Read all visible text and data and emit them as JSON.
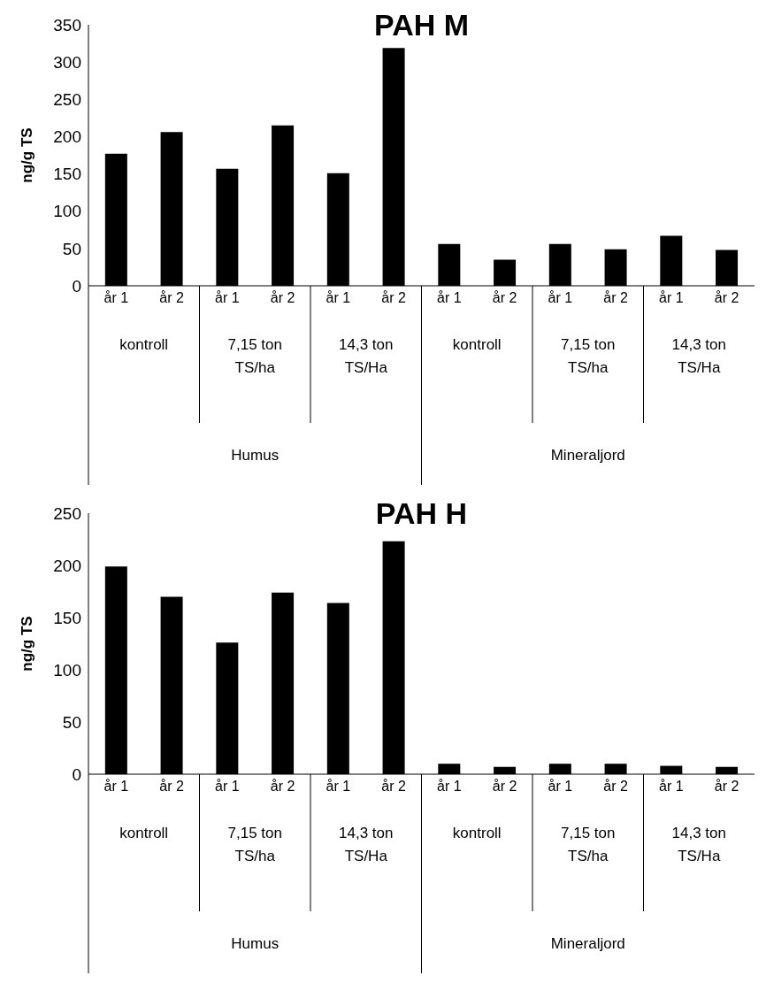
{
  "chart_data": [
    {
      "type": "bar",
      "title": "PAH M",
      "ylabel": "ng/g TS",
      "categories": [
        "år 1",
        "år 2",
        "år 1",
        "år 2",
        "år 1",
        "år 2",
        "år 1",
        "år 2",
        "år 1",
        "år 2",
        "år 1",
        "år 2"
      ],
      "values": [
        177,
        206,
        157,
        215,
        151,
        319,
        56,
        35,
        56,
        49,
        67,
        48
      ],
      "color": "#000000",
      "ylim": [
        0,
        350
      ],
      "yticks": [
        0,
        50,
        100,
        150,
        200,
        250,
        300,
        350
      ],
      "grid": false,
      "legend": false,
      "annotations": [
        "kontroll",
        "7,15 ton TS/ha",
        "14,3 ton TS/Ha",
        "kontroll",
        "7,15 ton TS/ha",
        "14,3 ton TS/Ha",
        "Humus",
        "Mineraljord"
      ]
    },
    {
      "type": "bar",
      "title": "PAH H",
      "ylabel": "ng/g TS",
      "categories": [
        "år 1",
        "år 2",
        "år 1",
        "år 2",
        "år 1",
        "år 2",
        "år 1",
        "år 2",
        "år 1",
        "år 2",
        "år 1",
        "år 2"
      ],
      "values": [
        199,
        170,
        126,
        174,
        164,
        223,
        10,
        7,
        10,
        10,
        8,
        7
      ],
      "color": "#000000",
      "ylim": [
        0,
        250
      ],
      "yticks": [
        0,
        50,
        100,
        150,
        200,
        250
      ],
      "grid": false,
      "legend": false,
      "annotations": [
        "kontroll",
        "7,15 ton TS/ha",
        "14,3 ton TS/Ha",
        "kontroll",
        "7,15 ton TS/ha",
        "14,3 ton TS/Ha",
        "Humus",
        "Mineraljord"
      ]
    }
  ]
}
